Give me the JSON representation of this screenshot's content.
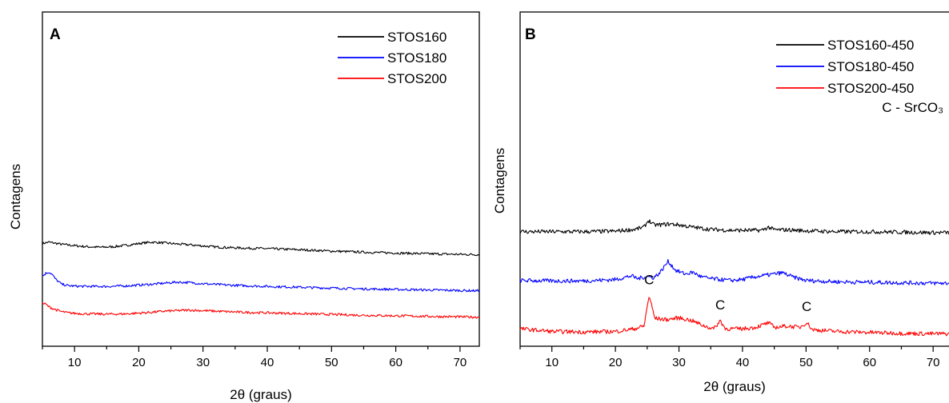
{
  "chart_data": [
    {
      "type": "line",
      "panel": "A",
      "xlabel": "2θ (graus)",
      "ylabel": "Contagens",
      "xlim": [
        5,
        73
      ],
      "xticks": [
        10,
        20,
        30,
        40,
        50,
        60,
        70
      ],
      "y_ticks_shown": false,
      "legend_position": "top-right",
      "series": [
        {
          "name": "STOS160",
          "color": "#000000",
          "offset": 2.3,
          "x": [
            5,
            6,
            8,
            10,
            12,
            14,
            16,
            18,
            20,
            22,
            24,
            26,
            28,
            30,
            32,
            35,
            40,
            45,
            50,
            55,
            60,
            65,
            70,
            73
          ],
          "y": [
            0.45,
            0.5,
            0.42,
            0.37,
            0.33,
            0.31,
            0.33,
            0.38,
            0.45,
            0.5,
            0.47,
            0.43,
            0.4,
            0.36,
            0.32,
            0.29,
            0.26,
            0.22,
            0.17,
            0.13,
            0.1,
            0.07,
            0.05,
            0.04
          ]
        },
        {
          "name": "STOS180",
          "color": "#0000ff",
          "offset": 1.0,
          "x": [
            5,
            5.5,
            6,
            6.5,
            7,
            8,
            9,
            10,
            12,
            15,
            18,
            20,
            22,
            24,
            26,
            28,
            30,
            33,
            36,
            40,
            45,
            50,
            55,
            60,
            65,
            70,
            73
          ],
          "y": [
            0.55,
            0.65,
            0.7,
            0.62,
            0.45,
            0.25,
            0.2,
            0.18,
            0.17,
            0.17,
            0.19,
            0.22,
            0.25,
            0.29,
            0.33,
            0.31,
            0.27,
            0.23,
            0.2,
            0.17,
            0.14,
            0.11,
            0.08,
            0.06,
            0.04,
            0.02,
            0.01
          ]
        },
        {
          "name": "STOS200",
          "color": "#ff0000",
          "offset": 0.0,
          "x": [
            5,
            5.5,
            6,
            7,
            8,
            9,
            10,
            12,
            15,
            18,
            20,
            22,
            24,
            26,
            28,
            30,
            33,
            36,
            40,
            45,
            50,
            55,
            60,
            65,
            70,
            73
          ],
          "y": [
            0.55,
            0.52,
            0.42,
            0.32,
            0.24,
            0.2,
            0.18,
            0.16,
            0.15,
            0.16,
            0.19,
            0.22,
            0.26,
            0.28,
            0.3,
            0.28,
            0.25,
            0.22,
            0.2,
            0.17,
            0.14,
            0.11,
            0.09,
            0.07,
            0.05,
            0.04
          ]
        }
      ]
    },
    {
      "type": "line",
      "panel": "B",
      "xlabel": "2θ (graus)",
      "ylabel": "Contagens",
      "xlim": [
        5,
        73
      ],
      "xticks": [
        10,
        20,
        30,
        40,
        50,
        60,
        70
      ],
      "y_ticks_shown": false,
      "legend_position": "top-right",
      "annotation_legend": "C - SrCO₃",
      "annotations": [
        {
          "text": "C",
          "x": 25.3
        },
        {
          "text": "C",
          "x": 36.5
        },
        {
          "text": "C",
          "x": 50.1
        }
      ],
      "series": [
        {
          "name": "STOS160-450",
          "color": "#000000",
          "offset": 2.2,
          "x": [
            5,
            10,
            15,
            20,
            23,
            24.5,
            25.2,
            26,
            27,
            28.5,
            30,
            32,
            35,
            38,
            40,
            43,
            44.1,
            45,
            47,
            50,
            55,
            60,
            65,
            70,
            73
          ],
          "y": [
            0.05,
            0.05,
            0.05,
            0.06,
            0.1,
            0.15,
            0.3,
            0.2,
            0.2,
            0.22,
            0.2,
            0.15,
            0.1,
            0.08,
            0.08,
            0.08,
            0.15,
            0.09,
            0.09,
            0.07,
            0.05,
            0.05,
            0.04,
            0.03,
            0.03
          ]
        },
        {
          "name": "STOS180-450",
          "color": "#0000ff",
          "offset": 1.1,
          "x": [
            5,
            10,
            15,
            20,
            22.5,
            23.5,
            25,
            26,
            27,
            28.3,
            29.5,
            31,
            32.2,
            33.5,
            35,
            38,
            40,
            42,
            44,
            46.3,
            48,
            50,
            55,
            60,
            65,
            70,
            73
          ],
          "y": [
            0.08,
            0.07,
            0.07,
            0.1,
            0.18,
            0.12,
            0.17,
            0.14,
            0.25,
            0.5,
            0.3,
            0.22,
            0.26,
            0.16,
            0.12,
            0.08,
            0.1,
            0.16,
            0.2,
            0.25,
            0.15,
            0.08,
            0.05,
            0.04,
            0.03,
            0.02,
            0.02
          ]
        },
        {
          "name": "STOS200-450",
          "color": "#ff0000",
          "offset": 0.0,
          "x": [
            5,
            10,
            15,
            20,
            23,
            24.5,
            25.3,
            26.2,
            28,
            30,
            32,
            34,
            35.5,
            36.5,
            37.3,
            40,
            42,
            44.1,
            45,
            47,
            49,
            50.1,
            51,
            55,
            60,
            65,
            70,
            73
          ],
          "y": [
            0.12,
            0.06,
            0.05,
            0.06,
            0.12,
            0.18,
            0.85,
            0.35,
            0.32,
            0.36,
            0.3,
            0.18,
            0.12,
            0.3,
            0.12,
            0.12,
            0.15,
            0.25,
            0.15,
            0.18,
            0.15,
            0.26,
            0.1,
            0.06,
            0.04,
            0.02,
            0.01,
            0.01
          ]
        }
      ]
    }
  ]
}
